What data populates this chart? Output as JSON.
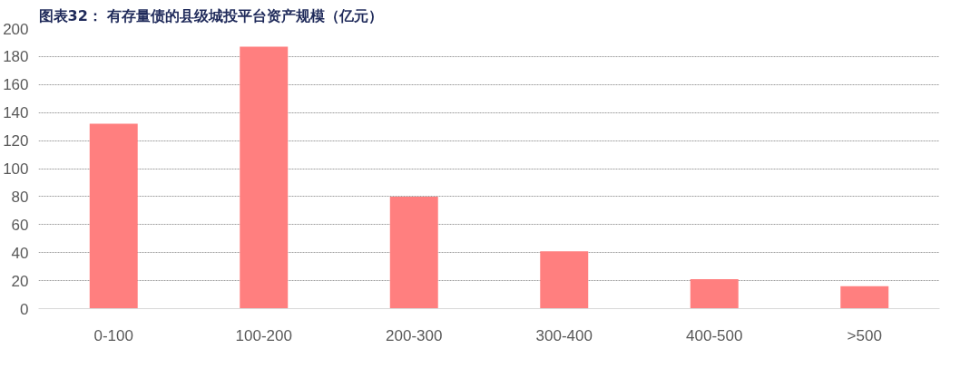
{
  "chart_data": {
    "type": "bar",
    "title": "图表32：  有存量债的县级城投平台资产规模（亿元）",
    "categories": [
      "0-100",
      "100-200",
      "200-300",
      "300-400",
      "400-500",
      ">500"
    ],
    "values": [
      132,
      187,
      80,
      41,
      21,
      16
    ],
    "color": "#ff7f7f",
    "ylim": [
      0,
      200
    ],
    "yticks": [
      0,
      20,
      40,
      60,
      80,
      100,
      120,
      140,
      160,
      180,
      200
    ],
    "grid": "y"
  }
}
